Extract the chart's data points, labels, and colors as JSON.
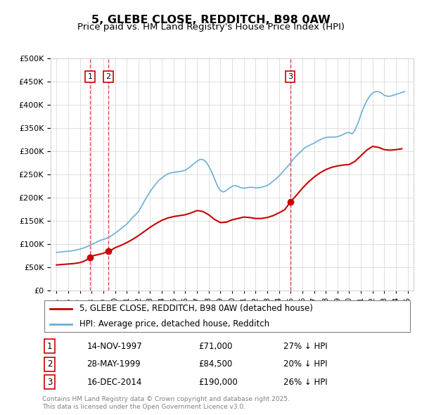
{
  "title": "5, GLEBE CLOSE, REDDITCH, B98 0AW",
  "subtitle": "Price paid vs. HM Land Registry's House Price Index (HPI)",
  "legend_line1": "5, GLEBE CLOSE, REDDITCH, B98 0AW (detached house)",
  "legend_line2": "HPI: Average price, detached house, Redditch",
  "footnote": "Contains HM Land Registry data © Crown copyright and database right 2025.\nThis data is licensed under the Open Government Licence v3.0.",
  "transactions": [
    {
      "num": 1,
      "date": "14-NOV-1997",
      "price": 71000,
      "hpi_note": "27% ↓ HPI",
      "year": 1997.87
    },
    {
      "num": 2,
      "date": "28-MAY-1999",
      "price": 84500,
      "hpi_note": "20% ↓ HPI",
      "year": 1999.41
    },
    {
      "num": 3,
      "date": "16-DEC-2014",
      "price": 190000,
      "hpi_note": "26% ↓ HPI",
      "year": 2014.96
    }
  ],
  "hpi_color": "#6baed6",
  "price_color": "#cc0000",
  "ylim": [
    0,
    500000
  ],
  "yticks": [
    0,
    50000,
    100000,
    150000,
    200000,
    250000,
    300000,
    350000,
    400000,
    450000,
    500000
  ],
  "xlim": [
    1994.5,
    2025.5
  ],
  "hpi_data_x": [
    1995.0,
    1995.25,
    1995.5,
    1995.75,
    1996.0,
    1996.25,
    1996.5,
    1996.75,
    1997.0,
    1997.25,
    1997.5,
    1997.75,
    1998.0,
    1998.25,
    1998.5,
    1998.75,
    1999.0,
    1999.25,
    1999.5,
    1999.75,
    2000.0,
    2000.25,
    2000.5,
    2000.75,
    2001.0,
    2001.25,
    2001.5,
    2001.75,
    2002.0,
    2002.25,
    2002.5,
    2002.75,
    2003.0,
    2003.25,
    2003.5,
    2003.75,
    2004.0,
    2004.25,
    2004.5,
    2004.75,
    2005.0,
    2005.25,
    2005.5,
    2005.75,
    2006.0,
    2006.25,
    2006.5,
    2006.75,
    2007.0,
    2007.25,
    2007.5,
    2007.75,
    2008.0,
    2008.25,
    2008.5,
    2008.75,
    2009.0,
    2009.25,
    2009.5,
    2009.75,
    2010.0,
    2010.25,
    2010.5,
    2010.75,
    2011.0,
    2011.25,
    2011.5,
    2011.75,
    2012.0,
    2012.25,
    2012.5,
    2012.75,
    2013.0,
    2013.25,
    2013.5,
    2013.75,
    2014.0,
    2014.25,
    2014.5,
    2014.75,
    2015.0,
    2015.25,
    2015.5,
    2015.75,
    2016.0,
    2016.25,
    2016.5,
    2016.75,
    2017.0,
    2017.25,
    2017.5,
    2017.75,
    2018.0,
    2018.25,
    2018.5,
    2018.75,
    2019.0,
    2019.25,
    2019.5,
    2019.75,
    2020.0,
    2020.25,
    2020.5,
    2020.75,
    2021.0,
    2021.25,
    2021.5,
    2021.75,
    2022.0,
    2022.25,
    2022.5,
    2022.75,
    2023.0,
    2023.25,
    2023.5,
    2023.75,
    2024.0,
    2024.25,
    2024.5,
    2024.75
  ],
  "hpi_data_y": [
    82000,
    82500,
    83000,
    84000,
    84500,
    85000,
    86000,
    87500,
    89000,
    91000,
    93000,
    96000,
    99000,
    102000,
    105000,
    108000,
    110000,
    112000,
    115000,
    119000,
    123000,
    128000,
    133000,
    138000,
    143000,
    150000,
    157000,
    163000,
    170000,
    180000,
    192000,
    203000,
    213000,
    222000,
    230000,
    237000,
    242000,
    247000,
    251000,
    253000,
    254000,
    255000,
    256000,
    257000,
    259000,
    263000,
    268000,
    273000,
    278000,
    282000,
    282000,
    277000,
    268000,
    255000,
    240000,
    225000,
    215000,
    212000,
    215000,
    220000,
    224000,
    226000,
    224000,
    221000,
    220000,
    221000,
    222000,
    222000,
    221000,
    221000,
    222000,
    224000,
    226000,
    230000,
    235000,
    240000,
    246000,
    253000,
    260000,
    267000,
    275000,
    283000,
    290000,
    296000,
    302000,
    308000,
    311000,
    314000,
    317000,
    321000,
    324000,
    327000,
    329000,
    330000,
    330000,
    330000,
    331000,
    333000,
    336000,
    339000,
    340000,
    337000,
    345000,
    360000,
    378000,
    395000,
    408000,
    418000,
    425000,
    428000,
    428000,
    425000,
    420000,
    418000,
    418000,
    420000,
    422000,
    424000,
    426000,
    428000
  ],
  "price_data_x": [
    1995.0,
    1995.25,
    1995.5,
    1995.75,
    1996.0,
    1996.25,
    1996.5,
    1996.75,
    1997.0,
    1997.25,
    1997.5,
    1997.75,
    1997.87,
    1998.0,
    1998.5,
    1999.0,
    1999.41,
    1999.75,
    2000.0,
    2000.5,
    2001.0,
    2001.5,
    2002.0,
    2002.5,
    2003.0,
    2003.5,
    2004.0,
    2004.5,
    2005.0,
    2005.5,
    2006.0,
    2006.5,
    2007.0,
    2007.5,
    2008.0,
    2008.5,
    2009.0,
    2009.5,
    2010.0,
    2010.5,
    2011.0,
    2011.5,
    2012.0,
    2012.5,
    2013.0,
    2013.5,
    2014.0,
    2014.5,
    2014.96,
    2015.5,
    2016.0,
    2016.5,
    2017.0,
    2017.5,
    2018.0,
    2018.5,
    2019.0,
    2019.5,
    2020.0,
    2020.5,
    2021.0,
    2021.5,
    2022.0,
    2022.5,
    2023.0,
    2023.5,
    2024.0,
    2024.5
  ],
  "price_data_y": [
    55000,
    55500,
    56000,
    56500,
    57000,
    57500,
    58000,
    59000,
    60000,
    62000,
    65000,
    68000,
    71000,
    74000,
    77000,
    80000,
    84500,
    88000,
    92000,
    97000,
    103000,
    110000,
    118000,
    127000,
    136000,
    144000,
    151000,
    156000,
    159000,
    161000,
    163000,
    167000,
    172000,
    170000,
    163000,
    153000,
    146000,
    147000,
    152000,
    155000,
    158000,
    157000,
    155000,
    155000,
    157000,
    161000,
    167000,
    174000,
    190000,
    205000,
    220000,
    233000,
    244000,
    253000,
    260000,
    265000,
    268000,
    270000,
    271000,
    278000,
    290000,
    302000,
    310000,
    308000,
    303000,
    302000,
    303000,
    305000
  ]
}
